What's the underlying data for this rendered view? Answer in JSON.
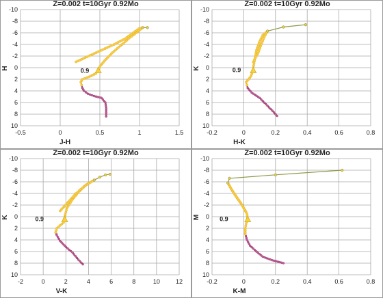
{
  "colors": {
    "upper_track": "#e8a23a",
    "upper_marker": "#f5d33c",
    "lower_track": "#8b2a55",
    "lower_marker": "#c060a0",
    "extension": "#8f9a46",
    "extension_marker": "#f2c94c",
    "turnoff_marker": "#f5d33c"
  },
  "chart_data": [
    {
      "type": "line",
      "title": "Z=0.002  t=10Gyr 0.92Mo",
      "xlabel": "J-H",
      "ylabel": "H",
      "xlim": [
        -0.5,
        1.5
      ],
      "ylim": [
        10,
        -10
      ],
      "xticks": [
        "-0.5",
        "0",
        "0.5",
        "1",
        "1.5"
      ],
      "yticks": [
        "-10",
        "-8",
        "-6",
        "-4",
        "-2",
        "0",
        "2",
        "4",
        "6",
        "8",
        "10"
      ],
      "annotation": {
        "text": "0.9",
        "x": 0.5,
        "y": 0.5
      },
      "turnoff": {
        "x": 0.48,
        "y": 0.5
      },
      "series": [
        {
          "role": "lower",
          "points": [
            [
              0.58,
              8.4
            ],
            [
              0.58,
              7.0
            ],
            [
              0.57,
              6.0
            ],
            [
              0.52,
              5.2
            ],
            [
              0.43,
              4.9
            ],
            [
              0.35,
              4.5
            ],
            [
              0.3,
              4.0
            ],
            [
              0.28,
              3.5
            ],
            [
              0.27,
              3.0
            ]
          ]
        },
        {
          "role": "upper",
          "points": [
            [
              0.27,
              3.0
            ],
            [
              0.26,
              2.5
            ],
            [
              0.28,
              2.0
            ],
            [
              0.36,
              1.6
            ],
            [
              0.45,
              1.0
            ],
            [
              0.48,
              0.5
            ],
            [
              0.5,
              -0.2
            ],
            [
              0.56,
              -1.2
            ],
            [
              0.66,
              -2.6
            ],
            [
              0.78,
              -4.0
            ],
            [
              0.88,
              -5.2
            ],
            [
              0.96,
              -6.0
            ],
            [
              1.03,
              -6.8
            ]
          ]
        },
        {
          "role": "upper",
          "points": [
            [
              0.2,
              -1.0
            ],
            [
              0.36,
              -2.0
            ],
            [
              0.52,
              -3.0
            ],
            [
              0.68,
              -4.0
            ],
            [
              0.82,
              -5.0
            ],
            [
              0.92,
              -6.0
            ],
            [
              0.99,
              -6.7
            ],
            [
              1.04,
              -6.9
            ]
          ]
        },
        {
          "role": "extension",
          "points": [
            [
              1.04,
              -6.9
            ],
            [
              1.1,
              -6.9
            ]
          ]
        }
      ]
    },
    {
      "type": "line",
      "title": "Z=0.002  t=10Gyr 0.92Mo",
      "xlabel": "H-K",
      "ylabel": "K",
      "xlim": [
        -0.2,
        0.8
      ],
      "ylim": [
        10,
        -10
      ],
      "xticks": [
        "-0.2",
        "0",
        "0.2",
        "0.4",
        "0.6",
        "0.8"
      ],
      "yticks": [
        "-10",
        "-8",
        "-6",
        "-4",
        "-2",
        "0",
        "2",
        "4",
        "6",
        "8",
        "10"
      ],
      "annotation": {
        "text": "0.9",
        "x": 0.05,
        "y": 0.4
      },
      "turnoff": {
        "x": 0.06,
        "y": 0.5
      },
      "series": [
        {
          "role": "lower",
          "points": [
            [
              0.21,
              8.3
            ],
            [
              0.18,
              7.4
            ],
            [
              0.14,
              6.3
            ],
            [
              0.1,
              5.2
            ],
            [
              0.05,
              4.3
            ],
            [
              0.025,
              3.5
            ],
            [
              0.02,
              3.0
            ]
          ]
        },
        {
          "role": "upper",
          "points": [
            [
              0.02,
              3.0
            ],
            [
              0.015,
              2.5
            ],
            [
              0.03,
              2.0
            ],
            [
              0.045,
              1.5
            ],
            [
              0.055,
              0.8
            ],
            [
              0.06,
              0.0
            ],
            [
              0.07,
              -1.5
            ],
            [
              0.08,
              -3.0
            ],
            [
              0.1,
              -4.5
            ],
            [
              0.12,
              -5.6
            ],
            [
              0.15,
              -6.3
            ]
          ]
        },
        {
          "role": "upper",
          "points": [
            [
              0.06,
              -1.0
            ],
            [
              0.09,
              -2.5
            ],
            [
              0.11,
              -4.0
            ],
            [
              0.13,
              -5.3
            ],
            [
              0.15,
              -6.3
            ]
          ]
        },
        {
          "role": "extension",
          "points": [
            [
              0.15,
              -6.3
            ],
            [
              0.25,
              -7.0
            ],
            [
              0.39,
              -7.4
            ]
          ]
        }
      ]
    },
    {
      "type": "line",
      "title": "Z=0.002  t=10Gyr 0.92Mo",
      "xlabel": "V-K",
      "ylabel": "K",
      "xlim": [
        -2,
        12
      ],
      "ylim": [
        10,
        -10
      ],
      "xticks": [
        "-2",
        "0",
        "2",
        "4",
        "6",
        "8",
        "10",
        "12"
      ],
      "yticks": [
        "-10",
        "-8",
        "-6",
        "-4",
        "-2",
        "0",
        "2",
        "4",
        "6",
        "8",
        "10"
      ],
      "annotation": {
        "text": "0.9",
        "x": 1.0,
        "y": 0.4
      },
      "turnoff": {
        "x": 1.9,
        "y": 0.5
      },
      "series": [
        {
          "role": "lower",
          "points": [
            [
              3.5,
              8.2
            ],
            [
              3.1,
              7.4
            ],
            [
              2.6,
              6.2
            ],
            [
              2.0,
              5.2
            ],
            [
              1.5,
              4.2
            ],
            [
              1.2,
              3.2
            ],
            [
              1.1,
              2.7
            ]
          ]
        },
        {
          "role": "upper",
          "points": [
            [
              1.1,
              2.7
            ],
            [
              1.2,
              2.0
            ],
            [
              1.5,
              1.5
            ],
            [
              1.8,
              1.0
            ],
            [
              1.9,
              0.0
            ],
            [
              2.1,
              -1.5
            ],
            [
              2.6,
              -3.0
            ],
            [
              3.2,
              -4.4
            ],
            [
              3.8,
              -5.5
            ],
            [
              4.5,
              -6.3
            ]
          ]
        },
        {
          "role": "upper",
          "points": [
            [
              1.5,
              -1.0
            ],
            [
              2.2,
              -2.5
            ],
            [
              2.9,
              -4.0
            ],
            [
              3.6,
              -5.2
            ],
            [
              4.5,
              -6.3
            ]
          ]
        },
        {
          "role": "extension",
          "points": [
            [
              4.5,
              -6.3
            ],
            [
              5.0,
              -6.8
            ],
            [
              5.5,
              -7.2
            ],
            [
              5.9,
              -7.3
            ]
          ]
        }
      ]
    },
    {
      "type": "line",
      "title": "Z=0.002  t=10Gyr 0.92Mo",
      "xlabel": "K-M",
      "ylabel": "M",
      "xlim": [
        -0.2,
        0.8
      ],
      "ylim": [
        10,
        -10
      ],
      "xticks": [
        "-0.2",
        "0",
        "0.2",
        "0.4",
        "0.6",
        "0.8"
      ],
      "yticks": [
        "-10",
        "-8",
        "-6",
        "-4",
        "-2",
        "0",
        "2",
        "4",
        "6",
        "8",
        "10"
      ],
      "annotation": {
        "text": "0.9",
        "x": -0.03,
        "y": 0.4
      },
      "turnoff": {
        "x": 0.025,
        "y": 0.5
      },
      "series": [
        {
          "role": "lower",
          "points": [
            [
              0.25,
              8.0
            ],
            [
              0.18,
              7.5
            ],
            [
              0.12,
              6.9
            ],
            [
              0.08,
              6.0
            ],
            [
              0.04,
              5.0
            ],
            [
              0.02,
              4.0
            ],
            [
              0.01,
              3.0
            ]
          ]
        },
        {
          "role": "upper",
          "points": [
            [
              0.01,
              3.0
            ],
            [
              0.01,
              2.0
            ],
            [
              0.015,
              1.2
            ],
            [
              0.025,
              0.5
            ],
            [
              0.02,
              -0.5
            ],
            [
              -0.01,
              -2.0
            ],
            [
              -0.05,
              -3.5
            ],
            [
              -0.08,
              -4.8
            ],
            [
              -0.1,
              -5.8
            ]
          ]
        },
        {
          "role": "upper",
          "points": [
            [
              0.01,
              -1.0
            ],
            [
              -0.03,
              -2.8
            ],
            [
              -0.07,
              -4.4
            ],
            [
              -0.1,
              -5.8
            ]
          ]
        },
        {
          "role": "extension",
          "points": [
            [
              -0.1,
              -5.8
            ],
            [
              -0.09,
              -6.6
            ],
            [
              0.2,
              -7.2
            ],
            [
              0.62,
              -8.0
            ]
          ]
        }
      ]
    }
  ]
}
